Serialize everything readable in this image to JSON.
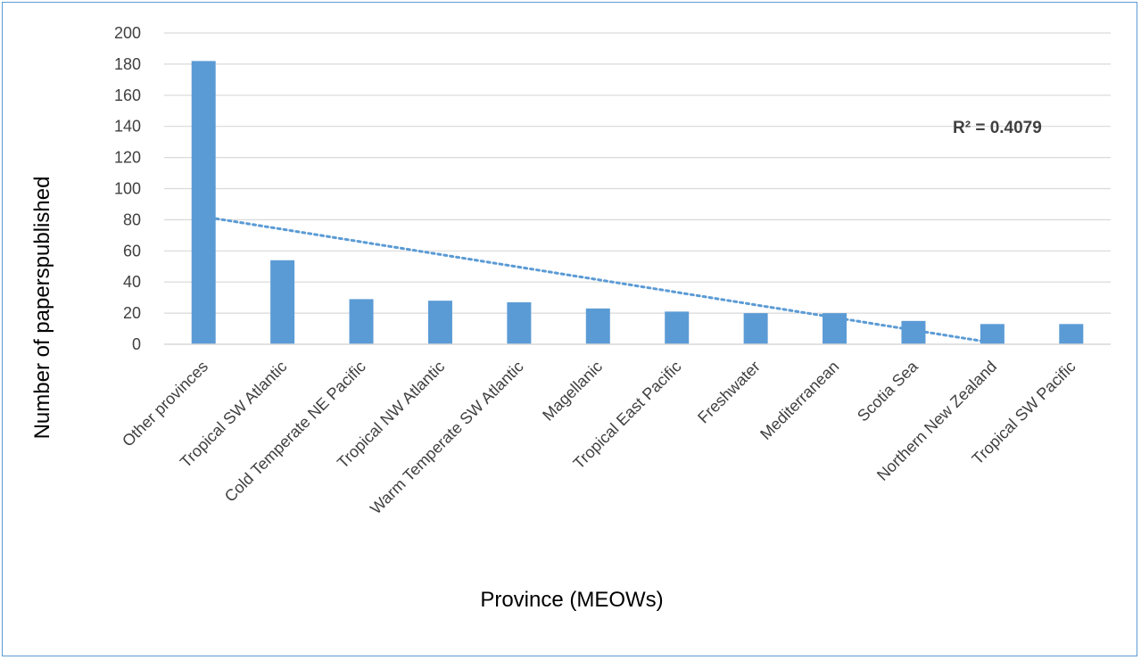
{
  "chart_data": {
    "type": "bar",
    "title": "",
    "xlabel": "Province (MEOWs)",
    "ylabel": "Number of paperspublished",
    "categories": [
      "Other provinces",
      "Tropical SW Atlantic",
      "Cold Temperate NE Pacific",
      "Tropical NW Atlantic",
      "Warm Temperate SW Atlantic",
      "Magellanic",
      "Tropical East Pacific",
      "Freshwater",
      "Mediterranean",
      "Scotia Sea",
      "Northern New Zealand",
      "Tropical SW Pacific"
    ],
    "values": [
      182,
      54,
      29,
      28,
      27,
      23,
      21,
      20,
      20,
      15,
      13,
      13
    ],
    "ylim": [
      0,
      200
    ],
    "yticks": [
      0,
      20,
      40,
      60,
      80,
      100,
      120,
      140,
      160,
      180,
      200
    ],
    "grid": true,
    "bar_color": "#5b9bd5",
    "grid_color": "#d9d9d9",
    "trendline": {
      "type": "linear",
      "style": "dotted",
      "color": "#5b9bd5",
      "start_value": 82,
      "end_value": 1,
      "label": "R² = 0.4079"
    }
  }
}
